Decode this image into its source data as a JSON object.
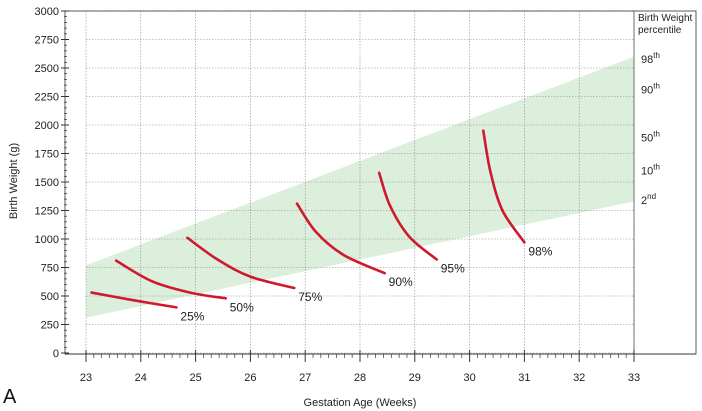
{
  "panel_label": "A",
  "chart_data": {
    "type": "line",
    "xlabel": "Gestation Age (Weeks)",
    "ylabel": "Birth Weight (g)",
    "xlim": [
      23,
      33
    ],
    "ylim": [
      0,
      3000
    ],
    "x_ticks": [
      23,
      24,
      25,
      26,
      27,
      28,
      29,
      30,
      31,
      32,
      33
    ],
    "y_ticks": [
      0,
      250,
      500,
      750,
      1000,
      1250,
      1500,
      1750,
      2000,
      2250,
      2500,
      2750,
      3000
    ],
    "grid": true,
    "band": {
      "color": "#dcefdc",
      "upper": [
        [
          23,
          770
        ],
        [
          33,
          2600
        ]
      ],
      "lower": [
        [
          23,
          310
        ],
        [
          33,
          1330
        ]
      ]
    },
    "legend": {
      "title_line1": "Birth Weight",
      "title_line2": "percentile",
      "placement": "right",
      "items": [
        {
          "base": "98",
          "sup": "th",
          "y": 2580
        },
        {
          "base": "90",
          "sup": "th",
          "y": 2310
        },
        {
          "base": "50",
          "sup": "th",
          "y": 1890
        },
        {
          "base": "10",
          "sup": "th",
          "y": 1600
        },
        {
          "base": "2",
          "sup": "nd",
          "y": 1340
        }
      ]
    },
    "series_color": "#d0192e",
    "series": [
      {
        "label": "25%",
        "points": [
          [
            23.1,
            530
          ],
          [
            23.9,
            460
          ],
          [
            24.65,
            400
          ]
        ]
      },
      {
        "label": "50%",
        "points": [
          [
            23.55,
            810
          ],
          [
            24.2,
            630
          ],
          [
            24.9,
            530
          ],
          [
            25.55,
            480
          ]
        ]
      },
      {
        "label": "75%",
        "points": [
          [
            24.85,
            1010
          ],
          [
            25.4,
            820
          ],
          [
            26.0,
            670
          ],
          [
            26.8,
            570
          ]
        ]
      },
      {
        "label": "90%",
        "points": [
          [
            26.85,
            1310
          ],
          [
            27.2,
            1060
          ],
          [
            27.7,
            860
          ],
          [
            28.45,
            700
          ]
        ]
      },
      {
        "label": "95%",
        "points": [
          [
            28.35,
            1580
          ],
          [
            28.55,
            1290
          ],
          [
            28.9,
            1020
          ],
          [
            29.4,
            820
          ]
        ]
      },
      {
        "label": "98%",
        "points": [
          [
            30.25,
            1950
          ],
          [
            30.38,
            1590
          ],
          [
            30.6,
            1250
          ],
          [
            31.0,
            970
          ]
        ]
      }
    ]
  }
}
